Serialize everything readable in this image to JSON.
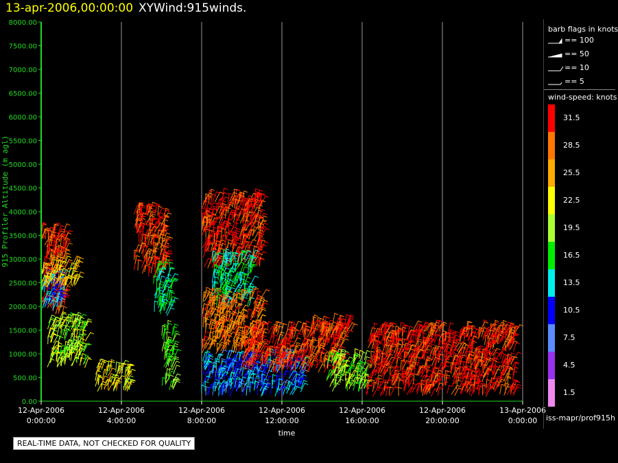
{
  "header": {
    "date_label": "13-apr-2006,00:00:00",
    "product_label": "XYWind:915winds."
  },
  "chart_data": {
    "type": "scatter",
    "title": "",
    "xlabel": "time",
    "ylabel": "915 Profiler Altitude (m agl)",
    "ylim": [
      0,
      8000
    ],
    "yticks": [
      "0.00",
      "500.00",
      "1000.00",
      "1500.00",
      "2000.00",
      "2500.00",
      "3000.00",
      "3500.00",
      "4000.00",
      "4500.00",
      "5000.00",
      "5500.00",
      "6000.00",
      "6500.00",
      "7000.00",
      "7500.00",
      "8000.00"
    ],
    "xlim_hours": [
      0,
      24
    ],
    "xticks": [
      {
        "date": "12-Apr-2006",
        "time": "0:00:00"
      },
      {
        "date": "12-Apr-2006",
        "time": "4:00:00"
      },
      {
        "date": "12-Apr-2006",
        "time": "8:00:00"
      },
      {
        "date": "12-Apr-2006",
        "time": "12:00:00"
      },
      {
        "date": "12-Apr-2006",
        "time": "16:00:00"
      },
      {
        "date": "12-Apr-2006",
        "time": "20:00:00"
      },
      {
        "date": "13-Apr-2006",
        "time": "0:00:00"
      }
    ],
    "grid": "vertical",
    "axis_color": "#22dd22",
    "series_note_free": true,
    "wind_clusters": [
      {
        "t": [
          0.0,
          1.2
        ],
        "h": [
          1800,
          3600
        ],
        "speed": 30
      },
      {
        "t": [
          0.0,
          1.0
        ],
        "h": [
          1900,
          2600
        ],
        "speed": 12
      },
      {
        "t": [
          0.0,
          1.8
        ],
        "h": [
          2400,
          2900
        ],
        "speed": 23
      },
      {
        "t": [
          0.3,
          2.2
        ],
        "h": [
          700,
          1700
        ],
        "speed": 20
      },
      {
        "t": [
          2.7,
          4.4
        ],
        "h": [
          200,
          700
        ],
        "speed": 22
      },
      {
        "t": [
          4.6,
          6.2
        ],
        "h": [
          2600,
          4000
        ],
        "speed": 30
      },
      {
        "t": [
          5.6,
          6.5
        ],
        "h": [
          1800,
          2800
        ],
        "speed": 15
      },
      {
        "t": [
          6.0,
          6.6
        ],
        "h": [
          200,
          1500
        ],
        "speed": 18
      },
      {
        "t": [
          8.0,
          11.0
        ],
        "h": [
          2800,
          4300
        ],
        "speed": 31
      },
      {
        "t": [
          8.5,
          10.5
        ],
        "h": [
          2000,
          3000
        ],
        "speed": 15
      },
      {
        "t": [
          8.0,
          11.0
        ],
        "h": [
          1000,
          2200
        ],
        "speed": 28
      },
      {
        "t": [
          8.0,
          13.0
        ],
        "h": [
          100,
          900
        ],
        "speed": 11
      },
      {
        "t": [
          10.0,
          15.0
        ],
        "h": [
          600,
          1500
        ],
        "speed": 30
      },
      {
        "t": [
          13.5,
          15.5
        ],
        "h": [
          1300,
          1650
        ],
        "speed": 31
      },
      {
        "t": [
          14.2,
          16.2
        ],
        "h": [
          200,
          900
        ],
        "speed": 19
      },
      {
        "t": [
          16.2,
          23.6
        ],
        "h": [
          100,
          1500
        ],
        "speed": 31
      }
    ]
  },
  "legend": {
    "barb_title": "barb flags in knots",
    "barbs": [
      "== 100",
      "== 50",
      "== 10",
      "== 5"
    ],
    "speed_title": "wind-speed: knots",
    "colorbar": [
      {
        "label": "31.5",
        "color": "#ff0000"
      },
      {
        "label": "28.5",
        "color": "#ff7700"
      },
      {
        "label": "25.5",
        "color": "#ffaa00"
      },
      {
        "label": "22.5",
        "color": "#ffff00"
      },
      {
        "label": "19.5",
        "color": "#aaff33"
      },
      {
        "label": "16.5",
        "color": "#00ee00"
      },
      {
        "label": "13.5",
        "color": "#00eeee"
      },
      {
        "label": "10.5",
        "color": "#0000ff"
      },
      {
        "label": "7.5",
        "color": "#5a8cff"
      },
      {
        "label": "4.5",
        "color": "#9932ee"
      },
      {
        "label": "1.5",
        "color": "#ee88ee"
      }
    ],
    "source": "iss-mapr/prof915h"
  },
  "footer": {
    "quality_note": "REAL-TIME DATA, NOT CHECKED FOR QUALITY"
  }
}
